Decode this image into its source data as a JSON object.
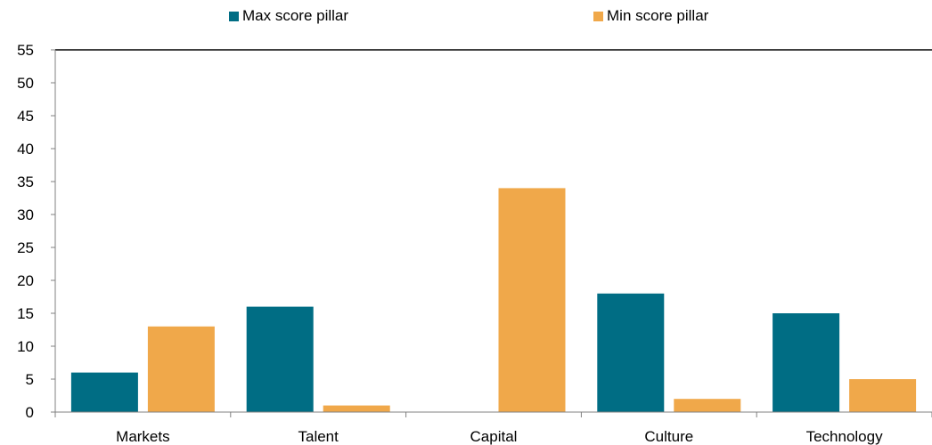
{
  "chart_data": {
    "type": "bar",
    "categories": [
      "Markets",
      "Talent",
      "Capital",
      "Culture",
      "Technology"
    ],
    "series": [
      {
        "name": "Max score pillar",
        "values": [
          6,
          16,
          0,
          18,
          15
        ],
        "color": "#006D84"
      },
      {
        "name": "Min score pillar",
        "values": [
          13,
          1,
          34,
          2,
          5
        ],
        "color": "#F0A84A"
      }
    ],
    "title": "",
    "xlabel": "",
    "ylabel": "",
    "ylim": [
      0,
      55
    ],
    "yticks": [
      0,
      5,
      10,
      15,
      20,
      25,
      30,
      35,
      40,
      45,
      50,
      55
    ],
    "grid": false,
    "legend": "top"
  }
}
